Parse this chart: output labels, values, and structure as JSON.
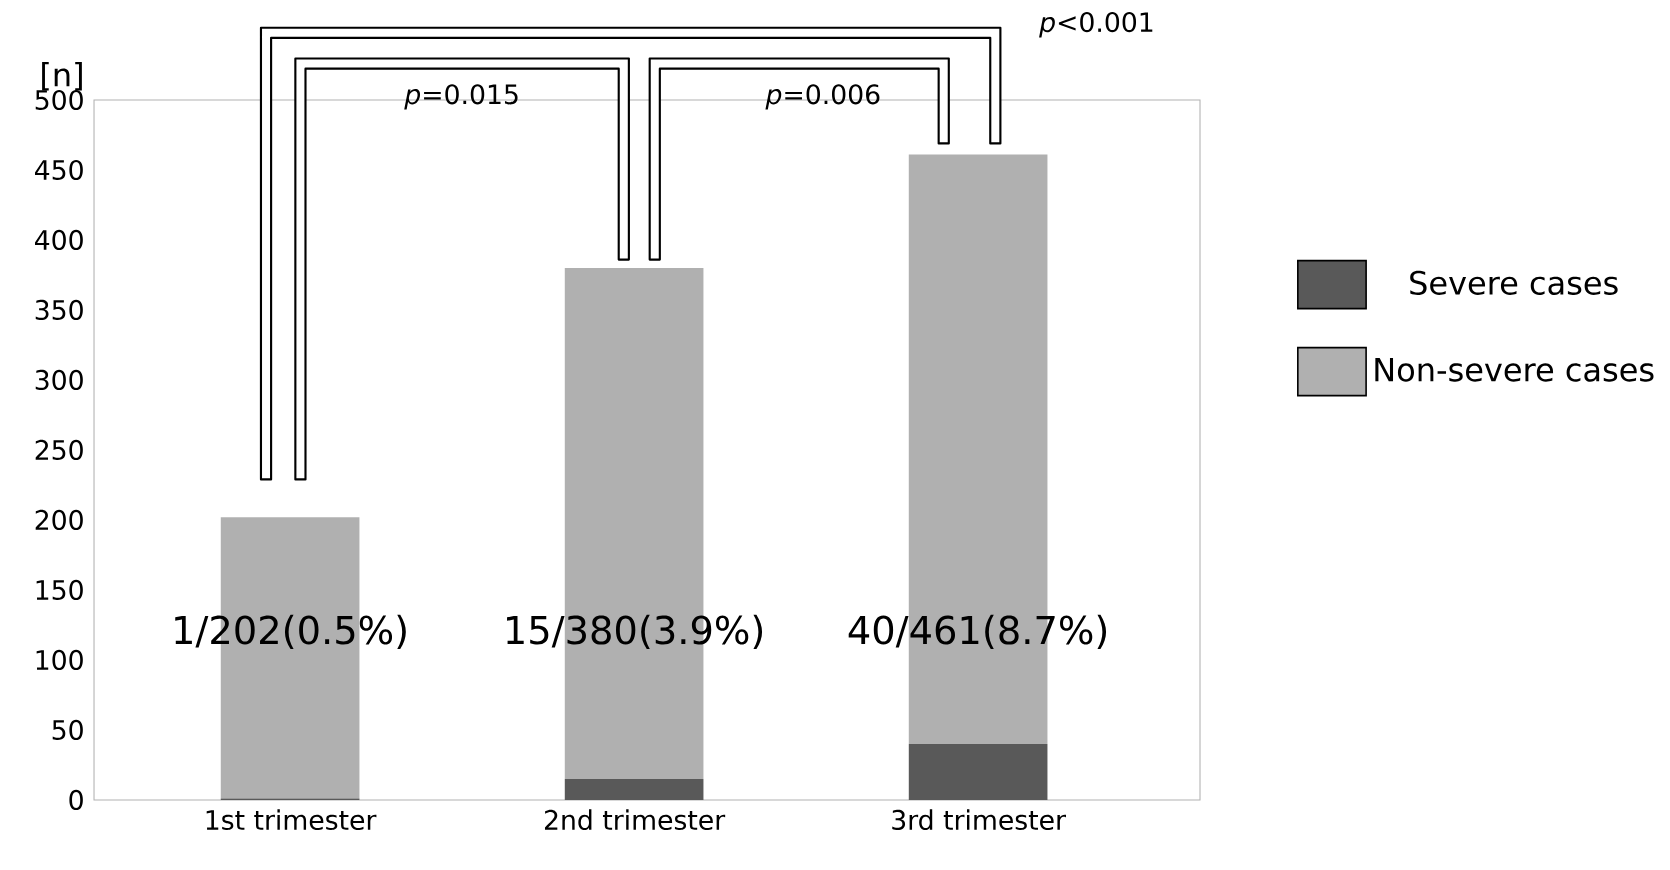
{
  "chart_data": {
    "type": "bar",
    "stacked": true,
    "ylabel": "[n]",
    "categories": [
      "1st trimester",
      "2nd trimester",
      "3rd trimester"
    ],
    "series": [
      {
        "name": "Severe cases",
        "color": "#595959",
        "values": [
          1,
          15,
          40
        ]
      },
      {
        "name": "Non-severe cases",
        "color": "#b0b0b0",
        "values": [
          201,
          365,
          421
        ]
      }
    ],
    "ylim": [
      0,
      500
    ],
    "yticks": [
      0,
      50,
      100,
      150,
      200,
      250,
      300,
      350,
      400,
      450,
      500
    ],
    "legend": "right",
    "annotations": [
      "1/202(0.5%)",
      "15/380(3.9%)",
      "40/461(8.7%)",
      "*p*=0.015",
      "*p*=0.006",
      "*p*<0.001"
    ]
  }
}
